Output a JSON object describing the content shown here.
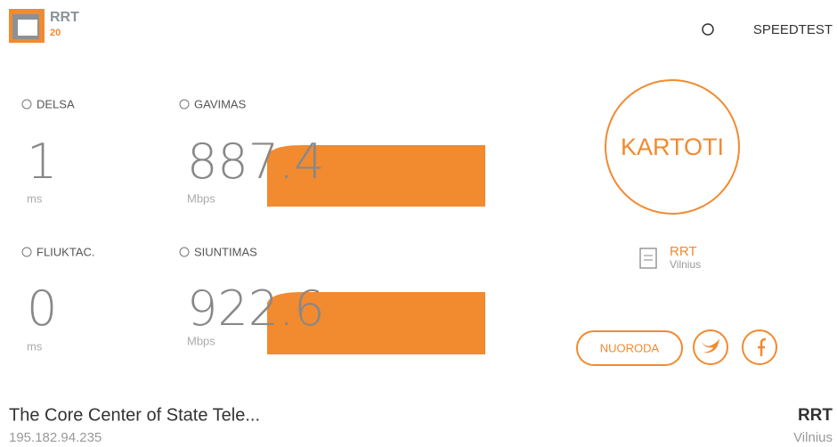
{
  "header": {
    "logo": "RRT",
    "logo_years": "20",
    "speedtest": "SPEEDTEST"
  },
  "metrics": [
    {
      "label": "DELSA",
      "value": "1",
      "unit": "ms"
    },
    {
      "label": "GAVIMAS",
      "value": "887.4",
      "unit": "Mbps"
    },
    {
      "label": "FLIUKTAC.",
      "value": "0",
      "unit": "ms"
    },
    {
      "label": "SIUNTIMAS",
      "value": "922.6",
      "unit": "Mbps"
    }
  ],
  "action": {
    "button": "KARTOTI"
  },
  "server": {
    "name": "RRT",
    "city": "Vilnius"
  },
  "share": {
    "button": "NUORODA"
  },
  "footer": {
    "isp": "The Core Center of State Tele...",
    "ip": "195.182.94.235",
    "provider": "RRT",
    "city": "Vilnius"
  }
}
